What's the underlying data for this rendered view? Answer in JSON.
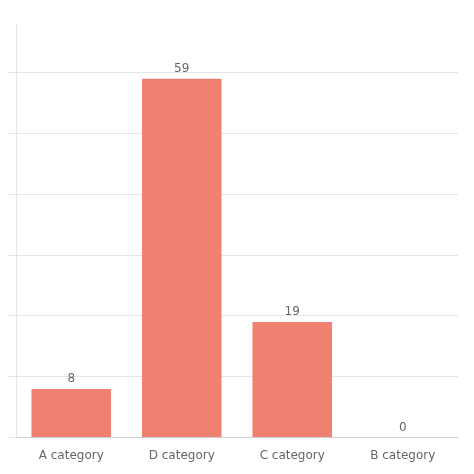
{
  "chart_data": {
    "type": "bar",
    "categories": [
      "A category",
      "D category",
      "C category",
      "B category"
    ],
    "values": [
      8,
      59,
      19,
      0
    ],
    "color": "#F08070",
    "ylim": [
      0,
      68
    ],
    "yticks": [
      0,
      10,
      20,
      30,
      40,
      50,
      60
    ],
    "grid": true,
    "data_labels": true,
    "tick_labels": "x"
  }
}
